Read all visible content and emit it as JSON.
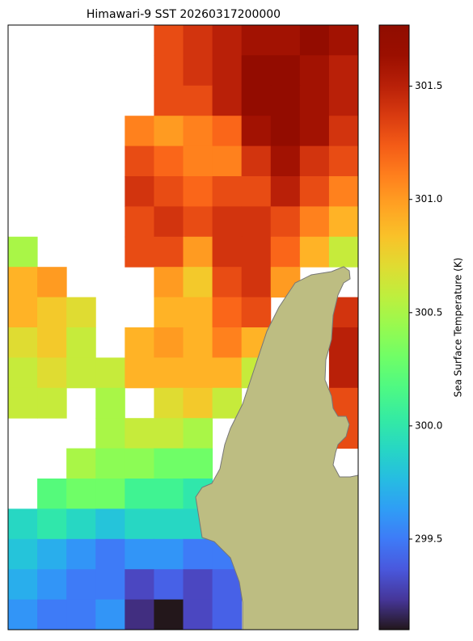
{
  "chart_data": {
    "type": "heatmap",
    "title": "Himawari-9 SST 20260317200000",
    "colorbar_label": "Sea Surface Temperature (K)",
    "colormap": "turbo",
    "clim": [
      299.1,
      301.77
    ],
    "cticks": [
      299.5,
      {
        "value": 300,
        "label": "300.0"
      },
      300.5,
      {
        "value": 301,
        "label": "301.0"
      },
      301.5
    ],
    "z": [
      [
        null,
        null,
        null,
        null,
        null,
        301.3,
        301.4,
        301.5,
        301.6,
        301.6,
        301.7,
        301.6
      ],
      [
        null,
        null,
        null,
        null,
        null,
        301.3,
        301.4,
        301.5,
        301.7,
        301.7,
        301.6,
        301.5
      ],
      [
        null,
        null,
        null,
        null,
        null,
        301.3,
        301.3,
        301.5,
        301.7,
        301.7,
        301.6,
        301.5
      ],
      [
        null,
        null,
        null,
        null,
        301.1,
        301.0,
        301.1,
        301.2,
        301.6,
        301.7,
        301.6,
        301.4
      ],
      [
        null,
        null,
        null,
        null,
        301.3,
        301.2,
        301.1,
        301.1,
        301.4,
        301.6,
        301.4,
        301.3
      ],
      [
        null,
        null,
        null,
        null,
        301.4,
        301.3,
        301.2,
        301.3,
        301.3,
        301.5,
        301.3,
        301.1
      ],
      [
        null,
        null,
        null,
        null,
        301.3,
        301.4,
        301.3,
        301.4,
        301.4,
        301.3,
        301.1,
        300.9
      ],
      [
        300.5,
        null,
        null,
        null,
        301.3,
        301.3,
        301.0,
        301.4,
        301.4,
        301.2,
        300.9,
        300.6
      ],
      [
        300.9,
        301.0,
        null,
        null,
        null,
        301.0,
        300.8,
        301.3,
        301.4,
        301.0,
        null,
        null
      ],
      [
        300.9,
        300.8,
        300.7,
        null,
        null,
        300.9,
        300.9,
        301.2,
        301.3,
        null,
        null,
        301.4
      ],
      [
        300.7,
        300.8,
        300.6,
        null,
        300.9,
        301.0,
        300.9,
        301.1,
        300.9,
        null,
        null,
        301.5
      ],
      [
        300.6,
        300.7,
        300.6,
        300.6,
        300.9,
        300.9,
        300.9,
        300.9,
        300.6,
        null,
        null,
        301.5
      ],
      [
        300.6,
        300.6,
        null,
        300.5,
        null,
        300.7,
        300.8,
        300.6,
        null,
        null,
        null,
        301.3
      ],
      [
        null,
        null,
        null,
        300.5,
        300.6,
        300.6,
        300.5,
        null,
        null,
        null,
        null,
        301.3
      ],
      [
        null,
        null,
        300.5,
        300.4,
        300.4,
        300.3,
        300.3,
        null,
        null,
        null,
        null,
        null
      ],
      [
        null,
        300.2,
        300.3,
        300.3,
        300.1,
        300.1,
        300.0,
        null,
        null,
        null,
        null,
        null
      ],
      [
        299.9,
        300.0,
        299.9,
        299.8,
        299.9,
        299.9,
        299.9,
        null,
        null,
        null,
        null,
        null
      ],
      [
        299.8,
        299.7,
        299.6,
        299.5,
        299.6,
        299.6,
        299.5,
        299.5,
        null,
        null,
        null,
        null
      ],
      [
        299.7,
        299.6,
        299.5,
        299.5,
        299.3,
        299.4,
        299.3,
        299.4,
        null,
        null,
        null,
        null
      ],
      [
        299.6,
        299.5,
        299.5,
        299.6,
        299.2,
        299.1,
        299.3,
        299.4,
        null,
        null,
        null,
        null
      ]
    ]
  }
}
